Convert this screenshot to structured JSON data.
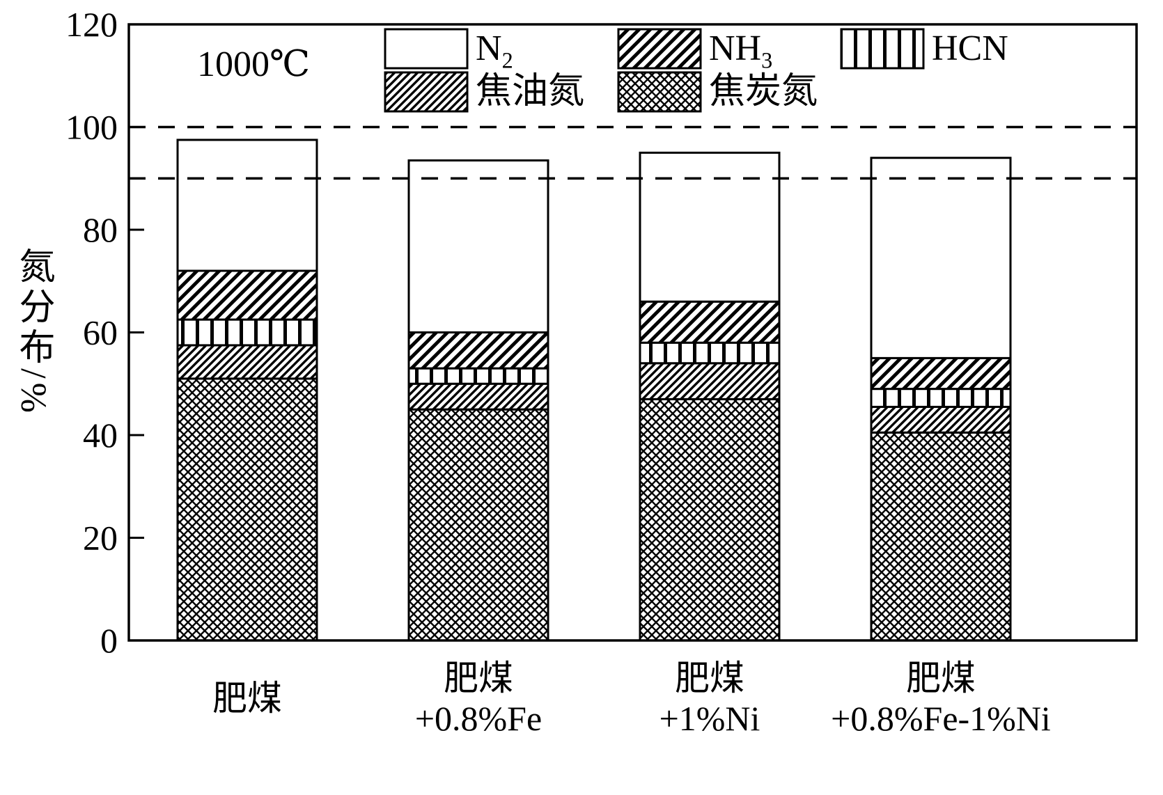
{
  "figure": {
    "background": "#ffffff",
    "ink_color": "#000000"
  },
  "chart_data": {
    "type": "bar",
    "stacked": true,
    "title": "",
    "annotation": "1000℃",
    "ylabel": "氮分布/%",
    "xlabel": "",
    "ylim": [
      0,
      120
    ],
    "yticks": [
      0,
      20,
      40,
      60,
      80,
      100,
      120
    ],
    "dashed_reference_lines": [
      90,
      100
    ],
    "grid": false,
    "legend_position": "top-inside",
    "categories": [
      {
        "lines": [
          "肥煤"
        ]
      },
      {
        "lines": [
          "肥煤",
          "+0.8%Fe"
        ]
      },
      {
        "lines": [
          "肥煤",
          "+1%Ni"
        ]
      },
      {
        "lines": [
          "肥煤",
          "+0.8%Fe-1%Ni"
        ]
      }
    ],
    "series": [
      {
        "key": "char-n",
        "name": "焦炭氮",
        "pattern": "crosshatch",
        "values": [
          51,
          45,
          47,
          40.5
        ]
      },
      {
        "key": "tar-n",
        "name": "焦油氮",
        "pattern": "diagonal-fine",
        "values": [
          6.5,
          5,
          7,
          5
        ]
      },
      {
        "key": "hcn",
        "name": "HCN",
        "pattern": "vertical",
        "values": [
          5,
          3,
          4,
          3.5
        ]
      },
      {
        "key": "nh3",
        "name": "NH3",
        "pattern": "diagonal",
        "values": [
          9.5,
          7,
          8,
          6
        ]
      },
      {
        "key": "n2",
        "name": "N2",
        "pattern": "none",
        "values": [
          25.5,
          33.5,
          29,
          39
        ]
      }
    ],
    "bar_totals": [
      97.5,
      93.5,
      95,
      94
    ],
    "legend": [
      {
        "key": "n2",
        "base": "N",
        "sub": "2",
        "pattern": "none"
      },
      {
        "key": "nh3",
        "base": "NH",
        "sub": "3",
        "pattern": "diagonal"
      },
      {
        "key": "hcn",
        "base": "HCN",
        "sub": "",
        "pattern": "vertical"
      },
      {
        "key": "tar-n",
        "base": "焦油氮",
        "sub": "",
        "pattern": "diagonal-fine"
      },
      {
        "key": "char-n",
        "base": "焦炭氮",
        "sub": "",
        "pattern": "crosshatch"
      }
    ]
  }
}
